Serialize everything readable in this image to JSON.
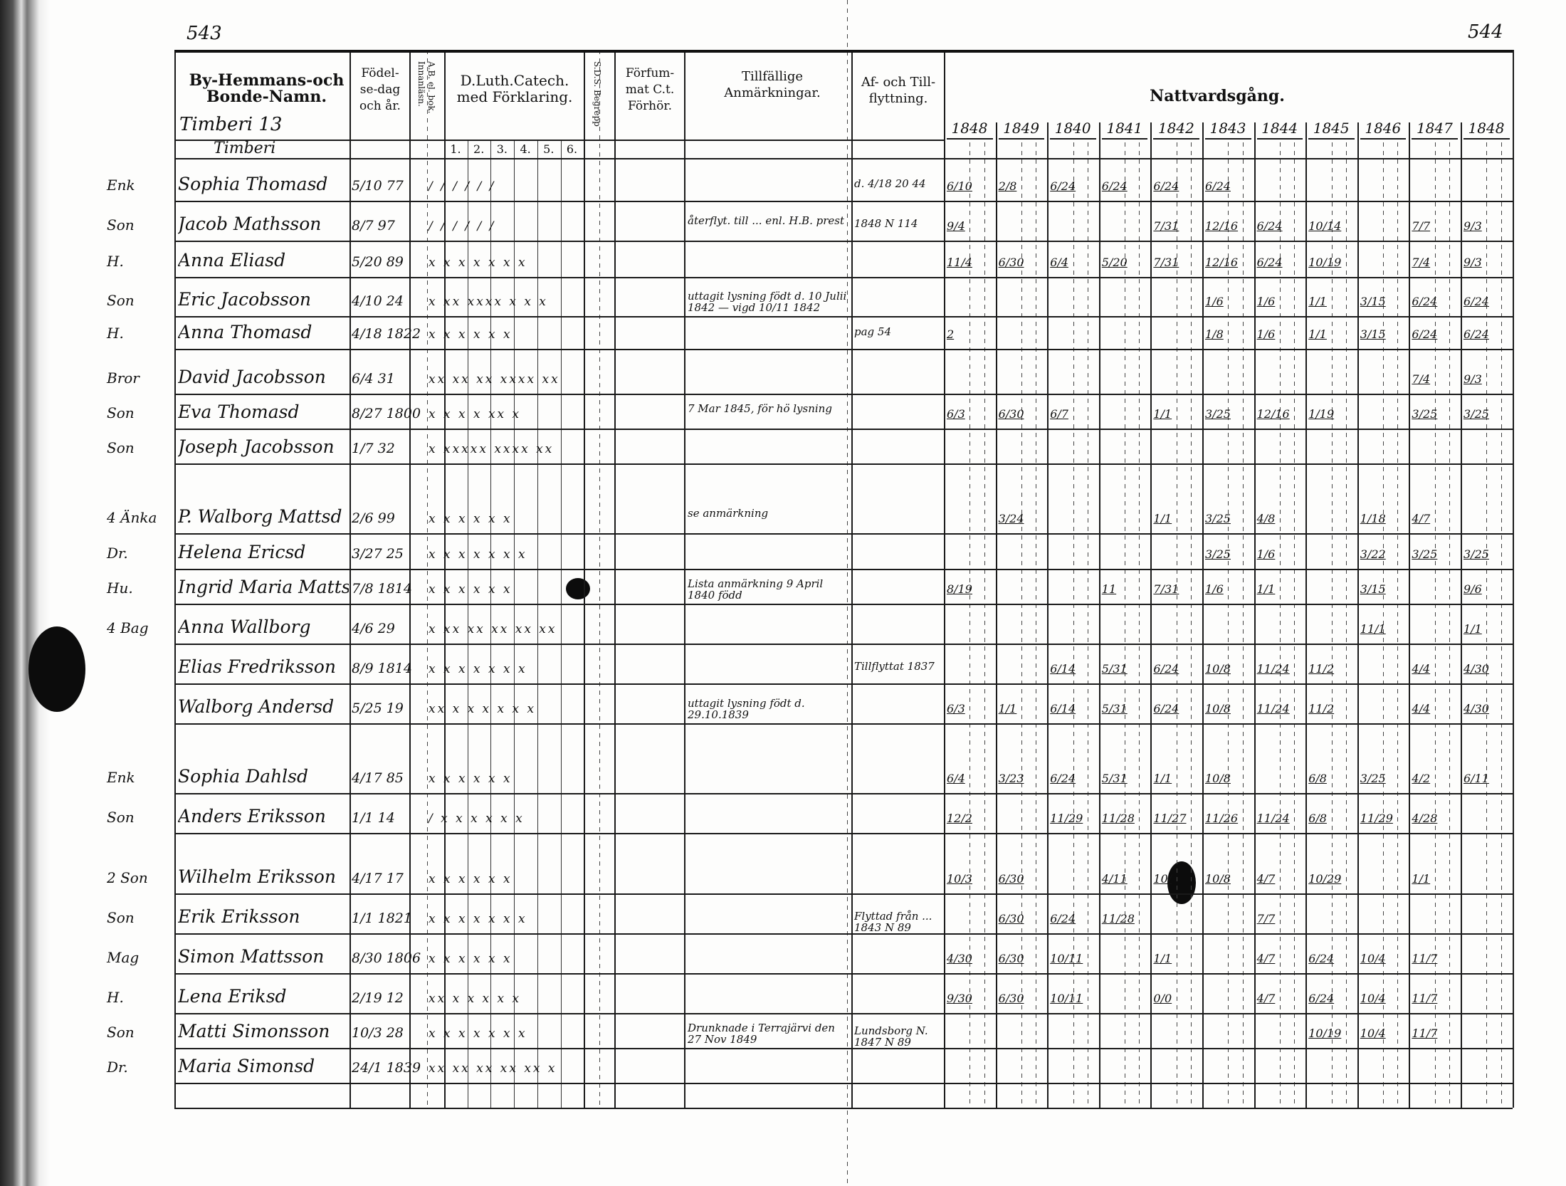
{
  "page_numbers": {
    "left": "543",
    "right": "544"
  },
  "headers": {
    "name_col": "By-Hemmans-och Bonde-Namn.",
    "birth_col": "Födel-se-dag och år.",
    "ab_col": "A.B. el. bok. Innanläsn.",
    "catech_col": "D.Luth.Catech. med Förklaring.",
    "catech_sub": [
      "1.",
      "2.",
      "3.",
      "4.",
      "5.",
      "6."
    ],
    "sds_col": "S.D.S. Begrepp",
    "forfum_col": "Förfum-mat C.t. Förhör.",
    "remarks_col": "Tillfällige Anmärkningar.",
    "moving_col": "Af- och Till-flyttning.",
    "communion_col": "Nattvardsgång.",
    "years": [
      "1848",
      "1849",
      "1840",
      "1841",
      "1842",
      "1843",
      "1844",
      "1845",
      "1846",
      "1847",
      "1848"
    ]
  },
  "village": {
    "label": "Timberi 13",
    "sub": "Timberi"
  },
  "rows": [
    {
      "prefix": "Enk",
      "name": "Sophia Thomasd",
      "birth": "5/10 77",
      "marks": "/ / / / / /",
      "remark": "",
      "moving": "d. 4/18 20 44",
      "communion": [
        "6/10",
        "2/8",
        "6/24",
        "6/24",
        "6/24",
        "6/24",
        "",
        "",
        "",
        "",
        ""
      ]
    },
    {
      "prefix": "Son",
      "name": "Jacob Mathsson",
      "birth": "8/7 97",
      "marks": "/ / / / / /",
      "remark": "återflyt. till ... enl. H.B. prest",
      "moving": "1848 N 114",
      "communion": [
        "9/4",
        "",
        "",
        "",
        "7/31",
        "12/16",
        "6/24",
        "10/14",
        "",
        "7/7",
        "9/3"
      ]
    },
    {
      "prefix": "H.",
      "name": "Anna Eliasd",
      "birth": "5/20 89",
      "marks": "x x x x x x x",
      "remark": "",
      "moving": "",
      "communion": [
        "11/4",
        "6/30",
        "6/4",
        "5/20",
        "7/31",
        "12/16",
        "6/24",
        "10/19",
        "",
        "7/4",
        "9/3"
      ]
    },
    {
      "prefix": "Son",
      "name": "Eric Jacobsson",
      "birth": "4/10 24",
      "marks": "x xx xxxx x x x",
      "remark": "uttagit lysning födt d. 10 Julii 1842 — vigd 10/11 1842",
      "moving": "",
      "communion": [
        "",
        "",
        "",
        "",
        "",
        "1/6",
        "1/6",
        "1/1",
        "3/15",
        "6/24",
        "6/24"
      ]
    },
    {
      "prefix": "H.",
      "name": "Anna Thomasd",
      "birth": "4/18 1822",
      "marks": "x x x x x x",
      "remark": "",
      "moving": "pag 54",
      "communion": [
        "2",
        "",
        "",
        "",
        "",
        "1/8",
        "1/6",
        "1/1",
        "3/15",
        "6/24",
        "6/24"
      ]
    },
    {
      "prefix": "Bror",
      "name": "David Jacobsson",
      "birth": "6/4 31",
      "marks": "xx xx xx xxxx xx",
      "remark": "",
      "moving": "",
      "communion": [
        "",
        "",
        "",
        "",
        "",
        "",
        "",
        "",
        "",
        "7/4",
        "9/3"
      ]
    },
    {
      "prefix": "Son",
      "name": "Eva Thomasd",
      "birth": "8/27 1800",
      "marks": "x x x x xx x",
      "remark": "7 Mar 1845, för hö lysning",
      "moving": "",
      "communion": [
        "6/3",
        "6/30",
        "6/7",
        "",
        "1/1",
        "3/25",
        "12/16",
        "1/19",
        "",
        "3/25",
        "3/25"
      ]
    },
    {
      "prefix": "Son",
      "name": "Joseph Jacobsson",
      "birth": "1/7 32",
      "marks": "x xxxxx xxxx xx",
      "remark": "",
      "moving": "",
      "communion": [
        "",
        "",
        "",
        "",
        "",
        "",
        "",
        "",
        "",
        "",
        ""
      ]
    },
    {
      "prefix": "4 Änka",
      "name": "P. Walborg Mattsd",
      "birth": "2/6 99",
      "marks": "x x x x x x",
      "remark": "se anmärkning",
      "moving": "",
      "communion": [
        "",
        "3/24",
        "",
        "",
        "1/1",
        "3/25",
        "4/8",
        "",
        "1/18",
        "4/7",
        ""
      ]
    },
    {
      "prefix": "Dr.",
      "name": "Helena Ericsd",
      "birth": "3/27 25",
      "marks": "x x x x x x x",
      "remark": "",
      "moving": "",
      "communion": [
        "",
        "",
        "",
        "",
        "",
        "3/25",
        "1/6",
        "",
        "3/22",
        "3/25",
        "3/25"
      ]
    },
    {
      "prefix": "Hu.",
      "name": "Ingrid Maria Mattsd",
      "birth": "7/8 1814",
      "marks": "x x x x x x",
      "remark": "Lista anmärkning 9 April 1840 född",
      "moving": "",
      "communion": [
        "8/19",
        "",
        "",
        "11",
        "7/31",
        "1/6",
        "1/1",
        "",
        "3/15",
        "",
        "9/6"
      ]
    },
    {
      "prefix": "4 Bag",
      "name": "Anna Wallborg",
      "birth": "4/6 29",
      "marks": "x xx xx xx xx xx",
      "remark": "",
      "moving": "",
      "communion": [
        "",
        "",
        "",
        "",
        "",
        "",
        "",
        "",
        "11/1",
        "",
        "1/1"
      ]
    },
    {
      "prefix": "",
      "name": "Elias Fredriksson",
      "birth": "8/9 1814",
      "marks": "x x x x x x x",
      "remark": "",
      "moving": "Tillflyttat 1837",
      "communion": [
        "",
        "",
        "6/14",
        "5/31",
        "6/24",
        "10/8",
        "11/24",
        "11/2",
        "",
        "4/4",
        "4/30"
      ]
    },
    {
      "prefix": "",
      "name": "Walborg Andersd",
      "birth": "5/25 19",
      "marks": "xx x x x x x x",
      "remark": "uttagit lysning födt d. 29.10.1839",
      "moving": "",
      "communion": [
        "6/3",
        "1/1",
        "6/14",
        "5/31",
        "6/24",
        "10/8",
        "11/24",
        "11/2",
        "",
        "4/4",
        "4/30"
      ]
    },
    {
      "prefix": "Enk",
      "name": "Sophia Dahlsd",
      "birth": "4/17 85",
      "marks": "x x x x x x",
      "remark": "",
      "moving": "",
      "communion": [
        "6/4",
        "3/23",
        "6/24",
        "5/31",
        "1/1",
        "10/8",
        "",
        "6/8",
        "3/25",
        "4/2",
        "6/11"
      ]
    },
    {
      "prefix": "Son",
      "name": "Anders Eriksson",
      "birth": "1/1 14",
      "marks": "/ x x x x x x",
      "remark": "",
      "moving": "",
      "communion": [
        "12/2",
        "",
        "11/29",
        "11/28",
        "11/27",
        "11/26",
        "11/24",
        "6/8",
        "11/29",
        "4/28",
        ""
      ]
    },
    {
      "prefix": "2 Son",
      "name": "Wilhelm Eriksson",
      "birth": "4/17 17",
      "marks": "x x x x x x",
      "remark": "",
      "moving": "",
      "communion": [
        "10/3",
        "6/30",
        "",
        "4/11",
        "10/",
        "10/8",
        "4/7",
        "10/29",
        "",
        "1/1",
        ""
      ]
    },
    {
      "prefix": "Son",
      "name": "Erik Eriksson",
      "birth": "1/1 1821",
      "marks": "x x x x x x x",
      "remark": "",
      "moving": "Flyttad från ... 1843 N 89",
      "communion": [
        "",
        "6/30",
        "6/24",
        "11/28",
        "",
        "",
        "7/7",
        "",
        "",
        "",
        ""
      ]
    },
    {
      "prefix": "Mag",
      "name": "Simon Mattsson",
      "birth": "8/30 1806",
      "marks": "x x x x x x",
      "remark": "",
      "moving": "",
      "communion": [
        "4/30",
        "6/30",
        "10/11",
        "",
        "1/1",
        "",
        "4/7",
        "6/24",
        "10/4",
        "11/7",
        ""
      ]
    },
    {
      "prefix": "H.",
      "name": "Lena Eriksd",
      "birth": "2/19 12",
      "marks": "xx x x x x x",
      "remark": "",
      "moving": "",
      "communion": [
        "9/30",
        "6/30",
        "10/11",
        "",
        "0/0",
        "",
        "4/7",
        "6/24",
        "10/4",
        "11/7",
        ""
      ]
    },
    {
      "prefix": "Son",
      "name": "Matti Simonsson",
      "birth": "10/3 28",
      "marks": "x x x x x x x",
      "remark": "Drunknade i Terrajärvi den 27 Nov 1849",
      "moving": "Lundsborg N. 1847 N 89",
      "communion": [
        "",
        "",
        "",
        "",
        "",
        "",
        "",
        "10/19",
        "10/4",
        "11/7",
        ""
      ]
    },
    {
      "prefix": "Dr.",
      "name": "Maria Simonsd",
      "birth": "24/1 1839",
      "marks": "xx xx xx xx xx x",
      "remark": "",
      "moving": "",
      "communion": [
        "",
        "",
        "",
        "",
        "",
        "",
        "",
        "",
        "",
        "",
        ""
      ]
    }
  ],
  "colors": {
    "ink": "#111111",
    "paper": "#fdfdfc"
  }
}
